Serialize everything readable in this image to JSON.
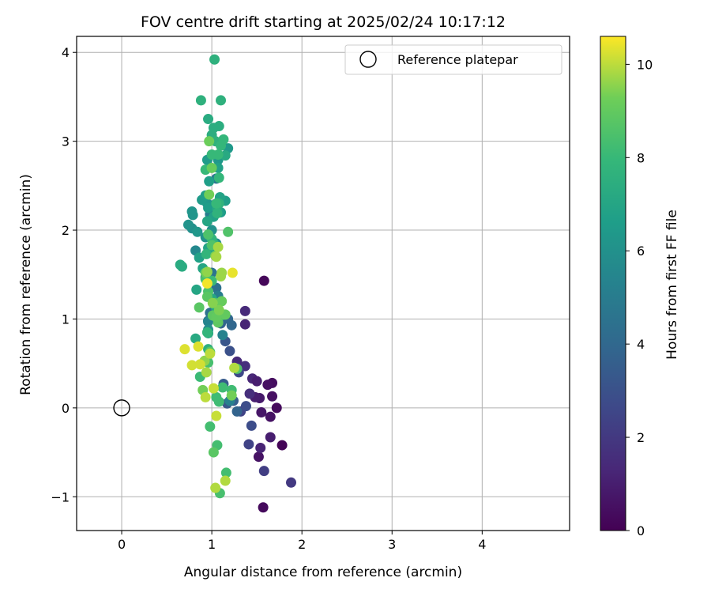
{
  "chart_data": {
    "type": "scatter",
    "title": "FOV centre drift starting at 2025/02/24 10:17:12",
    "xlabel": "Angular distance from reference (arcmin)",
    "ylabel": "Rotation from reference (arcmin)",
    "xlim": [
      -0.5,
      4.97
    ],
    "ylim": [
      -1.38,
      4.18
    ],
    "x_ticks": [
      "0",
      "1",
      "2",
      "3",
      "4"
    ],
    "y_ticks": [
      "−1",
      "0",
      "1",
      "2",
      "3",
      "4"
    ],
    "grid": true,
    "legend": {
      "placement": "top-right",
      "entries": [
        "Reference platepar"
      ]
    },
    "reference_point": {
      "x": 0,
      "y": 0
    },
    "colorbar": {
      "label": "Hours from first FF file",
      "range": [
        0,
        10.6
      ],
      "ticks": [
        "0",
        "2",
        "4",
        "6",
        "8",
        "10"
      ],
      "colormap": "viridis"
    },
    "points": [
      [
        1.58,
        1.43,
        0.2
      ],
      [
        1.57,
        -1.12,
        0.3
      ],
      [
        1.78,
        -0.42,
        0.1
      ],
      [
        1.67,
        0.28,
        0.4
      ],
      [
        1.52,
        -0.55,
        0.6
      ],
      [
        1.62,
        0.26,
        0.5
      ],
      [
        1.72,
        0.0,
        0.3
      ],
      [
        1.67,
        0.13,
        0.5
      ],
      [
        1.65,
        -0.1,
        0.6
      ],
      [
        1.53,
        0.11,
        0.8
      ],
      [
        1.48,
        0.12,
        1.0
      ],
      [
        1.55,
        -0.05,
        0.7
      ],
      [
        1.65,
        -0.33,
        1.0
      ],
      [
        1.54,
        -0.45,
        1.2
      ],
      [
        1.45,
        0.33,
        1.3
      ],
      [
        1.5,
        0.3,
        1.0
      ],
      [
        1.37,
        1.09,
        1.4
      ],
      [
        1.37,
        0.94,
        1.2
      ],
      [
        1.42,
        0.16,
        1.6
      ],
      [
        1.37,
        0.47,
        1.6
      ],
      [
        1.28,
        0.52,
        1.4
      ],
      [
        1.88,
        -0.84,
        2.0
      ],
      [
        1.58,
        -0.71,
        2.2
      ],
      [
        1.41,
        -0.41,
        2.4
      ],
      [
        1.44,
        -0.2,
        2.8
      ],
      [
        1.3,
        0.4,
        2.6
      ],
      [
        1.32,
        -0.04,
        2.4
      ],
      [
        1.38,
        0.02,
        2.8
      ],
      [
        1.2,
        0.64,
        3.0
      ],
      [
        1.15,
        0.75,
        3.2
      ],
      [
        1.13,
        0.27,
        3.4
      ],
      [
        1.17,
        0.05,
        3.3
      ],
      [
        1.24,
        0.08,
        3.6
      ],
      [
        1.28,
        -0.04,
        3.8
      ],
      [
        1.1,
        0.95,
        3.8
      ],
      [
        1.18,
        1.0,
        4.0
      ],
      [
        1.22,
        0.93,
        4.0
      ],
      [
        0.96,
        0.98,
        4.2
      ],
      [
        0.98,
        1.07,
        4.4
      ],
      [
        1.05,
        1.35,
        4.4
      ],
      [
        1.0,
        1.52,
        4.6
      ],
      [
        1.05,
        2.58,
        4.8
      ],
      [
        0.93,
        1.47,
        4.8
      ],
      [
        0.98,
        2.18,
        5.0
      ],
      [
        1.07,
        1.26,
        5.0
      ],
      [
        1.2,
        0.08,
        5.2
      ],
      [
        1.12,
        0.82,
        5.3
      ],
      [
        0.96,
        0.97,
        5.4
      ],
      [
        0.82,
        1.77,
        5.6
      ],
      [
        1.02,
        2.28,
        5.6
      ],
      [
        0.96,
        0.88,
        5.8
      ],
      [
        1.05,
        1.85,
        5.8
      ],
      [
        0.78,
        2.02,
        5.9
      ],
      [
        0.93,
        1.92,
        6.0
      ],
      [
        1.0,
        2.0,
        6.0
      ],
      [
        0.74,
        2.06,
        6.1
      ],
      [
        0.78,
        2.21,
        6.2
      ],
      [
        0.79,
        2.17,
        6.2
      ],
      [
        0.95,
        2.3,
        6.3
      ],
      [
        0.84,
        1.98,
        6.3
      ],
      [
        1.07,
        2.79,
        6.4
      ],
      [
        1.18,
        2.92,
        6.4
      ],
      [
        0.95,
        2.79,
        6.5
      ],
      [
        0.89,
        2.34,
        6.5
      ],
      [
        0.96,
        2.25,
        6.6
      ],
      [
        1.05,
        2.25,
        6.6
      ],
      [
        1.1,
        2.2,
        6.6
      ],
      [
        0.97,
        2.55,
        6.7
      ],
      [
        0.93,
        2.39,
        6.7
      ],
      [
        1.15,
        2.33,
        6.7
      ],
      [
        1.07,
        2.2,
        6.8
      ],
      [
        1.02,
        2.15,
        6.8
      ],
      [
        1.07,
        2.7,
        6.8
      ],
      [
        0.86,
        1.69,
        6.8
      ],
      [
        0.96,
        1.8,
        6.9
      ],
      [
        1.01,
        1.76,
        6.9
      ],
      [
        1.09,
        2.37,
        6.9
      ],
      [
        0.95,
        2.1,
        7.0
      ],
      [
        0.9,
        1.57,
        7.0
      ],
      [
        0.83,
        1.33,
        7.0
      ],
      [
        1.05,
        1.12,
        7.0
      ],
      [
        1.0,
        1.23,
        7.1
      ],
      [
        1.06,
        2.24,
        7.1
      ],
      [
        1.15,
        2.84,
        7.2
      ],
      [
        1.1,
        2.98,
        7.2
      ],
      [
        0.82,
        0.78,
        7.2
      ],
      [
        0.96,
        0.84,
        7.2
      ],
      [
        0.65,
        1.61,
        7.3
      ],
      [
        0.67,
        1.59,
        7.3
      ],
      [
        0.96,
        3.25,
        7.3
      ],
      [
        1.08,
        3.17,
        7.4
      ],
      [
        1.02,
        3.15,
        7.4
      ],
      [
        1.0,
        3.07,
        7.4
      ],
      [
        1.08,
        1.02,
        7.4
      ],
      [
        1.02,
        1.17,
        7.5
      ],
      [
        0.96,
        0.66,
        7.5
      ],
      [
        1.03,
        3.92,
        7.6
      ],
      [
        1.1,
        3.46,
        7.6
      ],
      [
        0.88,
        3.46,
        7.6
      ],
      [
        1.04,
        3.0,
        7.6
      ],
      [
        1.08,
        2.3,
        7.7
      ],
      [
        1.06,
        2.19,
        7.7
      ],
      [
        1.0,
        1.9,
        7.8
      ],
      [
        0.94,
        1.73,
        7.8
      ],
      [
        1.02,
        1.85,
        7.8
      ],
      [
        0.95,
        0.85,
        7.8
      ],
      [
        1.1,
        2.95,
        7.9
      ],
      [
        1.13,
        3.02,
        7.9
      ],
      [
        1.08,
        2.59,
        7.9
      ],
      [
        1.05,
        2.3,
        8.0
      ],
      [
        0.93,
        2.68,
        8.0
      ],
      [
        1.0,
        2.85,
        8.0
      ],
      [
        1.07,
        2.85,
        8.0
      ],
      [
        1.0,
        1.43,
        8.1
      ],
      [
        0.87,
        0.35,
        8.1
      ],
      [
        1.08,
        0.07,
        8.2
      ],
      [
        1.12,
        0.23,
        8.2
      ],
      [
        1.05,
        0.12,
        8.2
      ],
      [
        1.22,
        0.2,
        8.2
      ],
      [
        1.06,
        -0.42,
        8.3
      ],
      [
        0.98,
        -0.21,
        8.3
      ],
      [
        1.16,
        -0.73,
        8.3
      ],
      [
        1.09,
        -0.96,
        8.4
      ],
      [
        0.96,
        0.51,
        8.4
      ],
      [
        0.93,
        1.45,
        8.4
      ],
      [
        0.96,
        1.31,
        8.5
      ],
      [
        1.04,
        1.18,
        8.5
      ],
      [
        0.96,
        1.95,
        8.5
      ],
      [
        1.0,
        1.83,
        8.6
      ],
      [
        1.18,
        1.98,
        8.6
      ],
      [
        1.28,
        0.44,
        8.6
      ],
      [
        0.98,
        0.63,
        8.7
      ],
      [
        1.13,
        1.05,
        8.7
      ],
      [
        0.95,
        1.25,
        8.8
      ],
      [
        0.86,
        1.13,
        8.8
      ],
      [
        1.02,
        -0.5,
        8.8
      ],
      [
        1.01,
        1.04,
        8.9
      ],
      [
        1.07,
        0.96,
        8.9
      ],
      [
        1.15,
        1.05,
        9.0
      ],
      [
        1.05,
        1.02,
        9.0
      ],
      [
        1.11,
        1.2,
        9.1
      ],
      [
        1.0,
        2.7,
        9.1
      ],
      [
        0.97,
        3.0,
        9.2
      ],
      [
        0.93,
        1.52,
        9.2
      ],
      [
        0.97,
        2.4,
        9.3
      ],
      [
        0.9,
        0.2,
        9.3
      ],
      [
        1.22,
        0.14,
        9.3
      ],
      [
        1.04,
        1.71,
        9.4
      ],
      [
        1.08,
        1.1,
        9.4
      ],
      [
        1.01,
        1.18,
        9.5
      ],
      [
        0.92,
        0.53,
        9.6
      ],
      [
        0.95,
        1.53,
        9.6
      ],
      [
        1.1,
        1.48,
        9.7
      ],
      [
        1.11,
        1.52,
        9.7
      ],
      [
        1.05,
        1.7,
        9.8
      ],
      [
        1.07,
        1.81,
        9.8
      ],
      [
        0.94,
        0.4,
        9.8
      ],
      [
        1.04,
        -0.9,
        9.9
      ],
      [
        1.15,
        -0.82,
        9.9
      ],
      [
        1.25,
        0.45,
        9.9
      ],
      [
        0.98,
        0.61,
        10.0
      ],
      [
        0.93,
        0.12,
        10.0
      ],
      [
        1.02,
        0.22,
        10.1
      ],
      [
        1.05,
        -0.09,
        10.1
      ],
      [
        0.78,
        0.48,
        10.2
      ],
      [
        0.87,
        0.49,
        10.2
      ],
      [
        0.85,
        0.69,
        10.3
      ],
      [
        0.7,
        0.66,
        10.3
      ],
      [
        1.23,
        1.52,
        10.4
      ],
      [
        0.95,
        1.4,
        10.5
      ]
    ]
  }
}
